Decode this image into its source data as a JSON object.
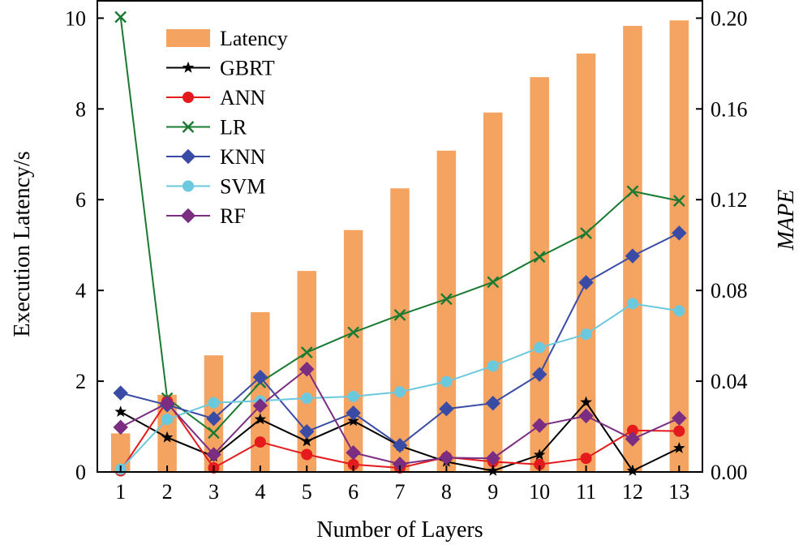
{
  "chart_data": {
    "type": "bar+line",
    "xlabel": "Number of Layers",
    "ylabel_left": "Execution Latency/s",
    "ylabel_right": "MAPE",
    "categories": [
      "1",
      "2",
      "3",
      "4",
      "5",
      "6",
      "7",
      "8",
      "9",
      "10",
      "11",
      "12",
      "13"
    ],
    "ylim_left": [
      0,
      10.4
    ],
    "yticks_left": [
      "0",
      "2",
      "4",
      "6",
      "8",
      "10"
    ],
    "ylim_right": [
      0,
      0.208
    ],
    "yticks_right": [
      "0.00",
      "0.04",
      "0.08",
      "0.12",
      "0.16",
      "0.20"
    ],
    "bar_series": {
      "name": "Latency",
      "color": "#f4a460",
      "values": [
        0.85,
        1.7,
        2.57,
        3.52,
        4.43,
        5.33,
        6.25,
        7.08,
        7.92,
        8.7,
        9.22,
        9.83,
        9.95
      ]
    },
    "line_series": [
      {
        "name": "GBRT",
        "color": "#000000",
        "marker": "star",
        "values": [
          0.0265,
          0.0152,
          0.0068,
          0.0232,
          0.0135,
          0.0225,
          0.0115,
          0.0045,
          0.0005,
          0.0075,
          0.0307,
          0.0005,
          0.0105
        ]
      },
      {
        "name": "ANN",
        "color": "#e41a1c",
        "marker": "circle",
        "values": [
          0.0005,
          0.0312,
          0.0018,
          0.0132,
          0.0077,
          0.0033,
          0.0018,
          0.0065,
          0.0045,
          0.0033,
          0.006,
          0.0183,
          0.018
        ]
      },
      {
        "name": "LR",
        "color": "#1a7a32",
        "marker": "x",
        "values": [
          0.2005,
          0.0325,
          0.0172,
          0.0395,
          0.0527,
          0.0615,
          0.0692,
          0.0762,
          0.0837,
          0.0948,
          0.1052,
          0.1237,
          0.1195
        ]
      },
      {
        "name": "KNN",
        "color": "#3a4ba6",
        "marker": "diamond",
        "values": [
          0.0348,
          0.0295,
          0.0235,
          0.0418,
          0.0178,
          0.026,
          0.0117,
          0.0278,
          0.0303,
          0.043,
          0.0835,
          0.0952,
          0.1053
        ]
      },
      {
        "name": "SVM",
        "color": "#6cc9dd",
        "marker": "circle",
        "values": [
          0.0012,
          0.0232,
          0.0305,
          0.0313,
          0.0325,
          0.0333,
          0.0353,
          0.0398,
          0.0467,
          0.0548,
          0.0607,
          0.0742,
          0.071
        ]
      },
      {
        "name": "RF",
        "color": "#7b2d82",
        "marker": "diamond",
        "values": [
          0.0197,
          0.0303,
          0.0077,
          0.0292,
          0.0453,
          0.0085,
          0.0035,
          0.0063,
          0.006,
          0.0205,
          0.0247,
          0.0145,
          0.0237
        ]
      }
    ],
    "legend_position": "upper-left",
    "grid": false
  }
}
